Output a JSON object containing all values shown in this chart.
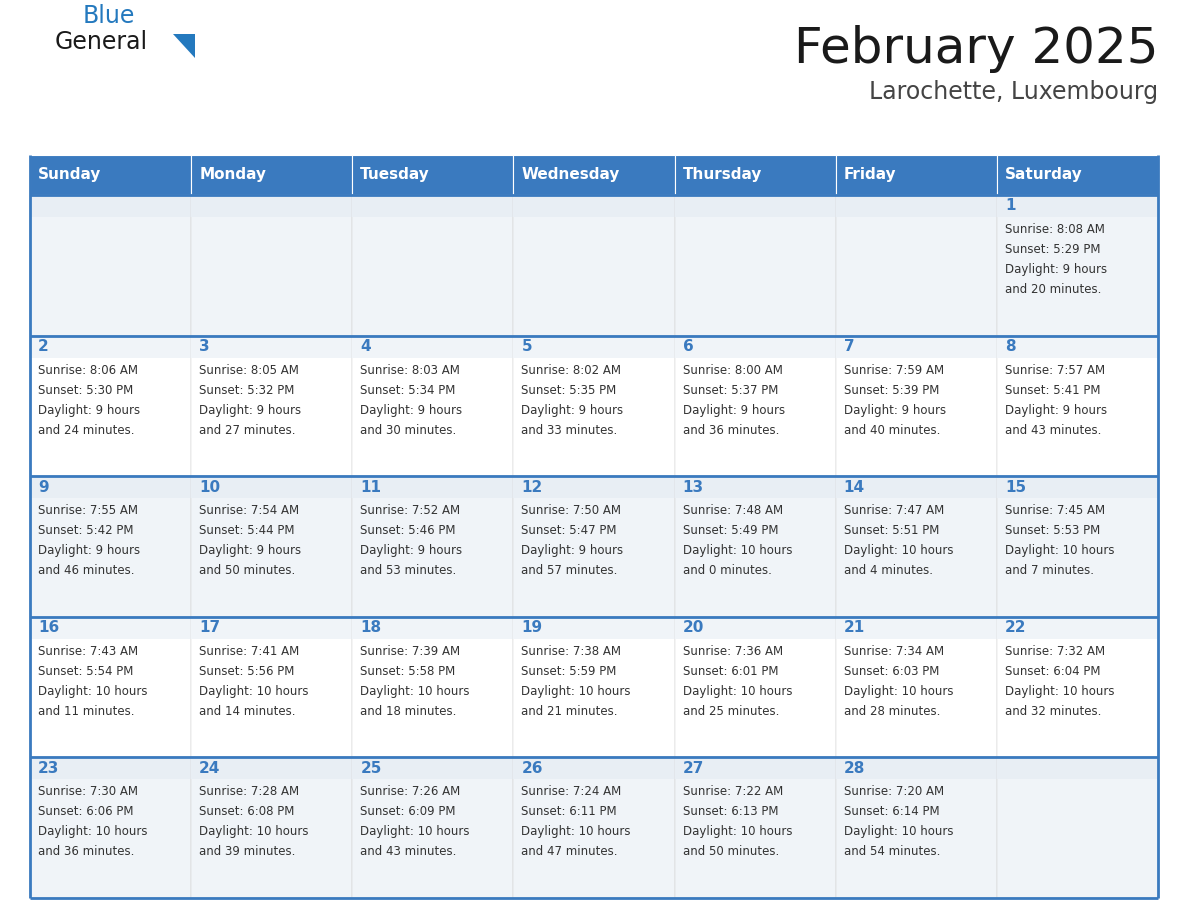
{
  "title": "February 2025",
  "subtitle": "Larochette, Luxembourg",
  "days_of_week": [
    "Sunday",
    "Monday",
    "Tuesday",
    "Wednesday",
    "Thursday",
    "Friday",
    "Saturday"
  ],
  "header_bg": "#3a7abf",
  "header_text": "#ffffff",
  "cell_bg_odd": "#f0f4f8",
  "cell_bg_even": "#ffffff",
  "day_number_color": "#3a7abf",
  "info_text_color": "#333333",
  "border_color": "#3a7abf",
  "title_color": "#1a1a1a",
  "subtitle_color": "#444444",
  "logo_general_color": "#1a1a1a",
  "logo_blue_color": "#2479be",
  "calendar_data": [
    [
      {
        "day": null,
        "info": ""
      },
      {
        "day": null,
        "info": ""
      },
      {
        "day": null,
        "info": ""
      },
      {
        "day": null,
        "info": ""
      },
      {
        "day": null,
        "info": ""
      },
      {
        "day": null,
        "info": ""
      },
      {
        "day": 1,
        "info": "Sunrise: 8:08 AM\nSunset: 5:29 PM\nDaylight: 9 hours\nand 20 minutes."
      }
    ],
    [
      {
        "day": 2,
        "info": "Sunrise: 8:06 AM\nSunset: 5:30 PM\nDaylight: 9 hours\nand 24 minutes."
      },
      {
        "day": 3,
        "info": "Sunrise: 8:05 AM\nSunset: 5:32 PM\nDaylight: 9 hours\nand 27 minutes."
      },
      {
        "day": 4,
        "info": "Sunrise: 8:03 AM\nSunset: 5:34 PM\nDaylight: 9 hours\nand 30 minutes."
      },
      {
        "day": 5,
        "info": "Sunrise: 8:02 AM\nSunset: 5:35 PM\nDaylight: 9 hours\nand 33 minutes."
      },
      {
        "day": 6,
        "info": "Sunrise: 8:00 AM\nSunset: 5:37 PM\nDaylight: 9 hours\nand 36 minutes."
      },
      {
        "day": 7,
        "info": "Sunrise: 7:59 AM\nSunset: 5:39 PM\nDaylight: 9 hours\nand 40 minutes."
      },
      {
        "day": 8,
        "info": "Sunrise: 7:57 AM\nSunset: 5:41 PM\nDaylight: 9 hours\nand 43 minutes."
      }
    ],
    [
      {
        "day": 9,
        "info": "Sunrise: 7:55 AM\nSunset: 5:42 PM\nDaylight: 9 hours\nand 46 minutes."
      },
      {
        "day": 10,
        "info": "Sunrise: 7:54 AM\nSunset: 5:44 PM\nDaylight: 9 hours\nand 50 minutes."
      },
      {
        "day": 11,
        "info": "Sunrise: 7:52 AM\nSunset: 5:46 PM\nDaylight: 9 hours\nand 53 minutes."
      },
      {
        "day": 12,
        "info": "Sunrise: 7:50 AM\nSunset: 5:47 PM\nDaylight: 9 hours\nand 57 minutes."
      },
      {
        "day": 13,
        "info": "Sunrise: 7:48 AM\nSunset: 5:49 PM\nDaylight: 10 hours\nand 0 minutes."
      },
      {
        "day": 14,
        "info": "Sunrise: 7:47 AM\nSunset: 5:51 PM\nDaylight: 10 hours\nand 4 minutes."
      },
      {
        "day": 15,
        "info": "Sunrise: 7:45 AM\nSunset: 5:53 PM\nDaylight: 10 hours\nand 7 minutes."
      }
    ],
    [
      {
        "day": 16,
        "info": "Sunrise: 7:43 AM\nSunset: 5:54 PM\nDaylight: 10 hours\nand 11 minutes."
      },
      {
        "day": 17,
        "info": "Sunrise: 7:41 AM\nSunset: 5:56 PM\nDaylight: 10 hours\nand 14 minutes."
      },
      {
        "day": 18,
        "info": "Sunrise: 7:39 AM\nSunset: 5:58 PM\nDaylight: 10 hours\nand 18 minutes."
      },
      {
        "day": 19,
        "info": "Sunrise: 7:38 AM\nSunset: 5:59 PM\nDaylight: 10 hours\nand 21 minutes."
      },
      {
        "day": 20,
        "info": "Sunrise: 7:36 AM\nSunset: 6:01 PM\nDaylight: 10 hours\nand 25 minutes."
      },
      {
        "day": 21,
        "info": "Sunrise: 7:34 AM\nSunset: 6:03 PM\nDaylight: 10 hours\nand 28 minutes."
      },
      {
        "day": 22,
        "info": "Sunrise: 7:32 AM\nSunset: 6:04 PM\nDaylight: 10 hours\nand 32 minutes."
      }
    ],
    [
      {
        "day": 23,
        "info": "Sunrise: 7:30 AM\nSunset: 6:06 PM\nDaylight: 10 hours\nand 36 minutes."
      },
      {
        "day": 24,
        "info": "Sunrise: 7:28 AM\nSunset: 6:08 PM\nDaylight: 10 hours\nand 39 minutes."
      },
      {
        "day": 25,
        "info": "Sunrise: 7:26 AM\nSunset: 6:09 PM\nDaylight: 10 hours\nand 43 minutes."
      },
      {
        "day": 26,
        "info": "Sunrise: 7:24 AM\nSunset: 6:11 PM\nDaylight: 10 hours\nand 47 minutes."
      },
      {
        "day": 27,
        "info": "Sunrise: 7:22 AM\nSunset: 6:13 PM\nDaylight: 10 hours\nand 50 minutes."
      },
      {
        "day": 28,
        "info": "Sunrise: 7:20 AM\nSunset: 6:14 PM\nDaylight: 10 hours\nand 54 minutes."
      },
      {
        "day": null,
        "info": ""
      }
    ]
  ]
}
